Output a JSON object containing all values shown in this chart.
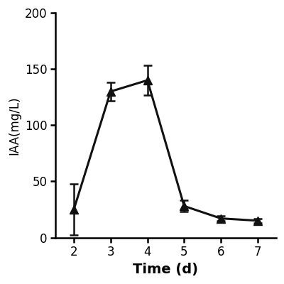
{
  "x": [
    2,
    3,
    4,
    5,
    6,
    7
  ],
  "y": [
    25,
    130,
    140,
    28,
    17,
    15
  ],
  "yerr": [
    23,
    8,
    13,
    5,
    2,
    2
  ],
  "xlabel": "Time (d)",
  "ylabel": "IAA(mg/L)",
  "ylim": [
    0,
    200
  ],
  "yticks": [
    0,
    50,
    100,
    150,
    200
  ],
  "xlim": [
    1.5,
    7.5
  ],
  "xticks": [
    2,
    3,
    4,
    5,
    6,
    7
  ],
  "line_color": "#111111",
  "marker": "^",
  "markersize": 8,
  "linewidth": 2.2,
  "capsize": 4,
  "xlabel_fontsize": 14,
  "ylabel_fontsize": 12,
  "tick_fontsize": 12,
  "background_color": "#ffffff"
}
